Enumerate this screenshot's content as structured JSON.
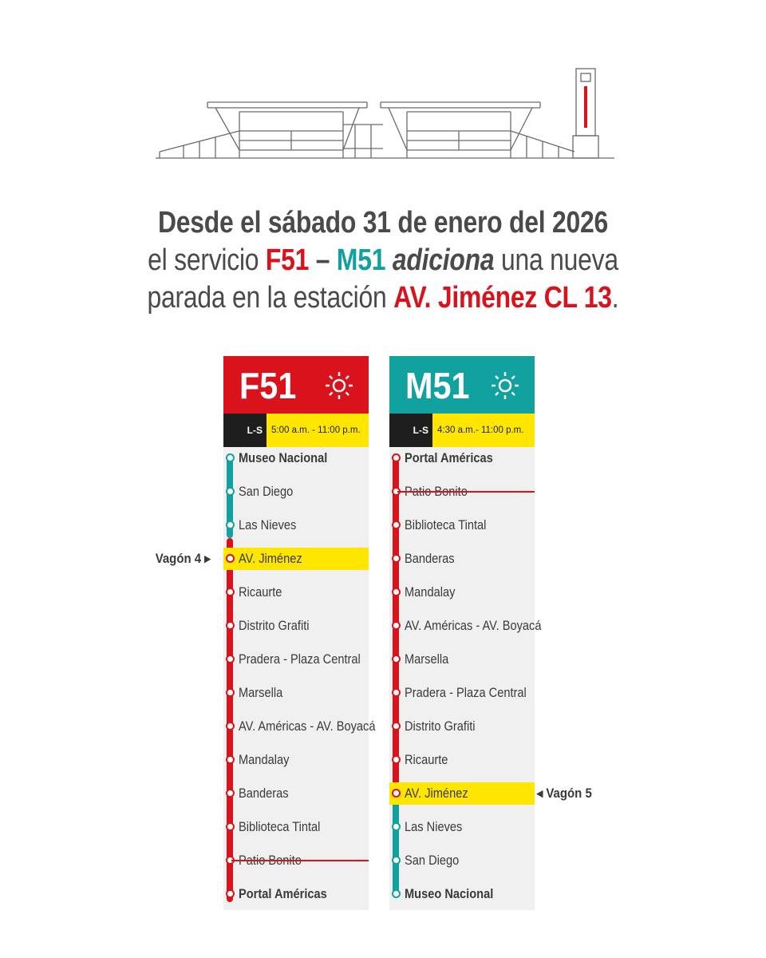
{
  "headline": {
    "line1": "Desde el sábado 31 de enero del 2026",
    "line2_a": "el servicio ",
    "line2_f": "F51",
    "line2_dash": " – ",
    "line2_m": "M51",
    "line2_sp": " ",
    "line2_verb": "adiciona",
    "line2_b": " una nueva",
    "line3_a": "parada en la estación ",
    "line3_station": "AV. Jiménez CL 13",
    "line3_end": "."
  },
  "colors": {
    "red": "#d9121b",
    "teal": "#11a19e",
    "yellow": "#ffe600"
  },
  "routes": [
    {
      "code": "F51",
      "days": "L-S",
      "hours": "5:00 a.m. - 11:00 p.m.",
      "icon": "sun-icon",
      "vagon_label": "Vagón 4",
      "stops": [
        {
          "name": "Museo Nacional",
          "bold": true
        },
        {
          "name": "San Diego"
        },
        {
          "name": "Las Nieves"
        },
        {
          "name": "AV. Jiménez",
          "highlight": true
        },
        {
          "name": "Ricaurte"
        },
        {
          "name": "Distrito Grafiti"
        },
        {
          "name": "Pradera - Plaza Central"
        },
        {
          "name": "Marsella"
        },
        {
          "name": "AV. Américas - AV. Boyacá"
        },
        {
          "name": "Mandalay"
        },
        {
          "name": "Banderas"
        },
        {
          "name": "Biblioteca Tintal"
        },
        {
          "name": "Patio Bonito",
          "struck": true
        },
        {
          "name": "Portal Américas",
          "bold": true
        }
      ]
    },
    {
      "code": "M51",
      "days": "L-S",
      "hours": "4:30 a.m.- 11:00 p.m.",
      "icon": "sun-icon",
      "vagon_label": "Vagón 5",
      "stops": [
        {
          "name": "Portal Américas",
          "bold": true
        },
        {
          "name": "Patio Bonito",
          "struck": true
        },
        {
          "name": "Biblioteca Tintal"
        },
        {
          "name": "Banderas"
        },
        {
          "name": "Mandalay"
        },
        {
          "name": "AV. Américas - AV. Boyacá"
        },
        {
          "name": "Marsella"
        },
        {
          "name": "Pradera - Plaza Central"
        },
        {
          "name": "Distrito Grafiti"
        },
        {
          "name": "Ricaurte"
        },
        {
          "name": "AV. Jiménez",
          "highlight": true
        },
        {
          "name": "Las Nieves"
        },
        {
          "name": "San Diego"
        },
        {
          "name": "Museo Nacional",
          "bold": true
        }
      ]
    }
  ]
}
